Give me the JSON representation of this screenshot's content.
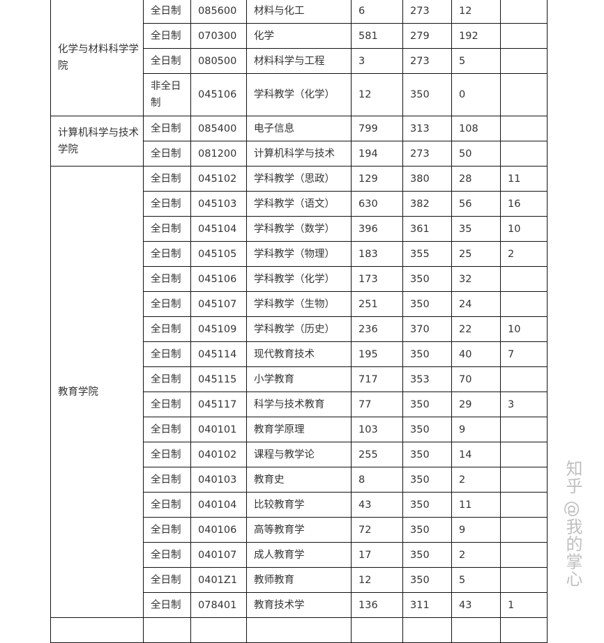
{
  "groups": [
    {
      "college": "化学与材料科学学院",
      "rows": [
        {
          "type": "全日制",
          "code": "085600",
          "major": "材料与化工",
          "applicants": "6",
          "score": "273",
          "admitted": "12",
          "extra": ""
        },
        {
          "type": "全日制",
          "code": "070300",
          "major": "化学",
          "applicants": "581",
          "score": "279",
          "admitted": "192",
          "extra": ""
        },
        {
          "type": "全日制",
          "code": "080500",
          "major": "材料科学与工程",
          "applicants": "3",
          "score": "273",
          "admitted": "5",
          "extra": ""
        },
        {
          "type": "非全日制",
          "code": "045106",
          "major": "学科教学（化学）",
          "applicants": "12",
          "score": "350",
          "admitted": "0",
          "extra": ""
        }
      ]
    },
    {
      "college": "计算机科学与技术学院",
      "rows": [
        {
          "type": "全日制",
          "code": "085400",
          "major": "电子信息",
          "applicants": "799",
          "score": "313",
          "admitted": "108",
          "extra": ""
        },
        {
          "type": "全日制",
          "code": "081200",
          "major": "计算机科学与技术",
          "applicants": "194",
          "score": "273",
          "admitted": "50",
          "extra": ""
        }
      ]
    },
    {
      "college": "教育学院",
      "rows": [
        {
          "type": "全日制",
          "code": "045102",
          "major": "学科教学（思政）",
          "applicants": "129",
          "score": "380",
          "admitted": "28",
          "extra": "11"
        },
        {
          "type": "全日制",
          "code": "045103",
          "major": "学科教学（语文）",
          "applicants": "630",
          "score": "382",
          "admitted": "56",
          "extra": "16"
        },
        {
          "type": "全日制",
          "code": "045104",
          "major": "学科教学（数学）",
          "applicants": "396",
          "score": "361",
          "admitted": "35",
          "extra": "10"
        },
        {
          "type": "全日制",
          "code": "045105",
          "major": "学科教学（物理）",
          "applicants": "183",
          "score": "355",
          "admitted": "25",
          "extra": "2"
        },
        {
          "type": "全日制",
          "code": "045106",
          "major": "学科教学（化学）",
          "applicants": "173",
          "score": "350",
          "admitted": "32",
          "extra": ""
        },
        {
          "type": "全日制",
          "code": "045107",
          "major": "学科教学（生物）",
          "applicants": "251",
          "score": "350",
          "admitted": "24",
          "extra": ""
        },
        {
          "type": "全日制",
          "code": "045109",
          "major": "学科教学（历史）",
          "applicants": "236",
          "score": "370",
          "admitted": "22",
          "extra": "10"
        },
        {
          "type": "全日制",
          "code": "045114",
          "major": "现代教育技术",
          "applicants": "195",
          "score": "350",
          "admitted": "40",
          "extra": "7"
        },
        {
          "type": "全日制",
          "code": "045115",
          "major": "小学教育",
          "applicants": "717",
          "score": "353",
          "admitted": "70",
          "extra": ""
        },
        {
          "type": "全日制",
          "code": "045117",
          "major": "科学与技术教育",
          "applicants": "77",
          "score": "350",
          "admitted": "29",
          "extra": "3"
        },
        {
          "type": "全日制",
          "code": "040101",
          "major": "教育学原理",
          "applicants": "103",
          "score": "350",
          "admitted": "9",
          "extra": ""
        },
        {
          "type": "全日制",
          "code": "040102",
          "major": "课程与教学论",
          "applicants": "255",
          "score": "350",
          "admitted": "14",
          "extra": ""
        },
        {
          "type": "全日制",
          "code": "040103",
          "major": "教育史",
          "applicants": "8",
          "score": "350",
          "admitted": "2",
          "extra": ""
        },
        {
          "type": "全日制",
          "code": "040104",
          "major": "比较教育学",
          "applicants": "43",
          "score": "350",
          "admitted": "11",
          "extra": ""
        },
        {
          "type": "全日制",
          "code": "040106",
          "major": "高等教育学",
          "applicants": "72",
          "score": "350",
          "admitted": "9",
          "extra": ""
        },
        {
          "type": "全日制",
          "code": "040107",
          "major": "成人教育学",
          "applicants": "17",
          "score": "350",
          "admitted": "2",
          "extra": ""
        },
        {
          "type": "全日制",
          "code": "0401Z1",
          "major": "教师教育",
          "applicants": "12",
          "score": "350",
          "admitted": "5",
          "extra": ""
        },
        {
          "type": "全日制",
          "code": "078401",
          "major": "教育技术学",
          "applicants": "136",
          "score": "311",
          "admitted": "43",
          "extra": "1"
        }
      ]
    }
  ],
  "watermark": "知乎 @我的掌心"
}
